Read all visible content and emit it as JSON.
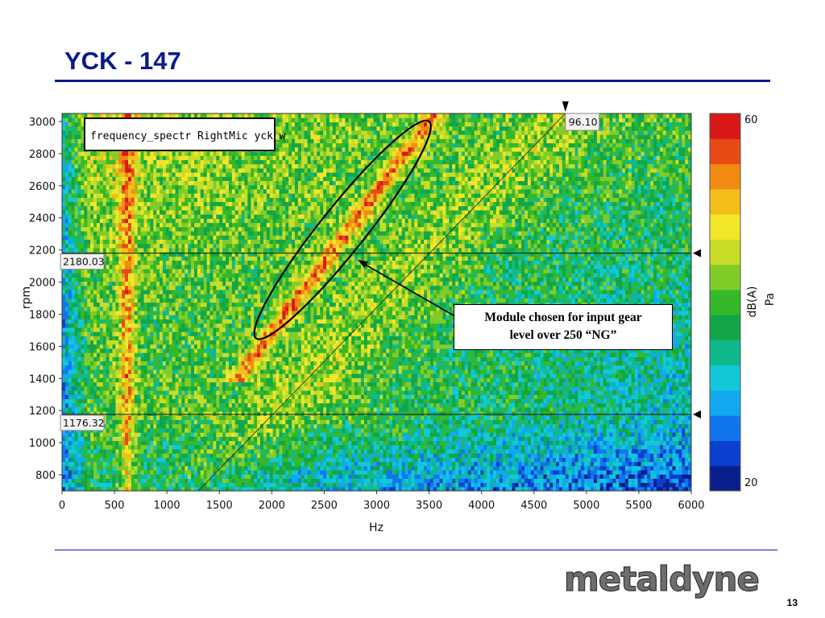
{
  "slide": {
    "title": "YCK - 147",
    "page_number": "13",
    "logo_text": "metaldyne"
  },
  "callout": {
    "line1": "Module chosen for input gear",
    "line2": "level over 250 “NG”"
  },
  "chart_data": {
    "type": "heatmap",
    "title": "",
    "legend_label": "frequency_spectr RightMic  yck_w",
    "xlabel": "Hz",
    "ylabel": "rpm",
    "xlim": [
      0,
      6000
    ],
    "ylim": [
      700,
      3050
    ],
    "x_ticks": [
      0,
      500,
      1000,
      1500,
      2000,
      2500,
      3000,
      3500,
      4000,
      4500,
      5000,
      5500,
      6000
    ],
    "y_ticks": [
      800,
      1000,
      1200,
      1400,
      1600,
      1800,
      2000,
      2200,
      2400,
      2600,
      2800,
      3000
    ],
    "colorbar": {
      "min": 20,
      "max": 60,
      "min_label": "20",
      "max_label": "60",
      "unit_labels": [
        "dB(A)",
        "Pa"
      ],
      "colors": [
        "#0a1f8c",
        "#0b3fd0",
        "#1176ee",
        "#11a9f0",
        "#12c8d8",
        "#10b98c",
        "#12a648",
        "#35b82a",
        "#82cc2a",
        "#c8dc28",
        "#f1e62a",
        "#f4be1a",
        "#f08a12",
        "#e84a16",
        "#d81818"
      ]
    },
    "cursors": {
      "horizontal": [
        {
          "rpm": 2180.03,
          "label": "2180.03"
        },
        {
          "rpm": 1176.32,
          "label": "1176.32"
        }
      ],
      "vertical": {
        "hz": 4800,
        "label": "96.10"
      }
    },
    "order_line": {
      "from": [
        1300,
        700
      ],
      "to": [
        4800,
        3050
      ]
    },
    "highlight_ellipse_hz_range": [
      1850,
      3500
    ],
    "highlight_ellipse_rpm_range": [
      1650,
      3000
    ],
    "features": [
      {
        "name": "high-energy band near 500-650 Hz",
        "hz": 620,
        "level_db": 52
      },
      {
        "name": "gear order ridge",
        "from": [
          1900,
          1600
        ],
        "to": [
          3500,
          3000
        ],
        "level_db": 58
      }
    ]
  }
}
